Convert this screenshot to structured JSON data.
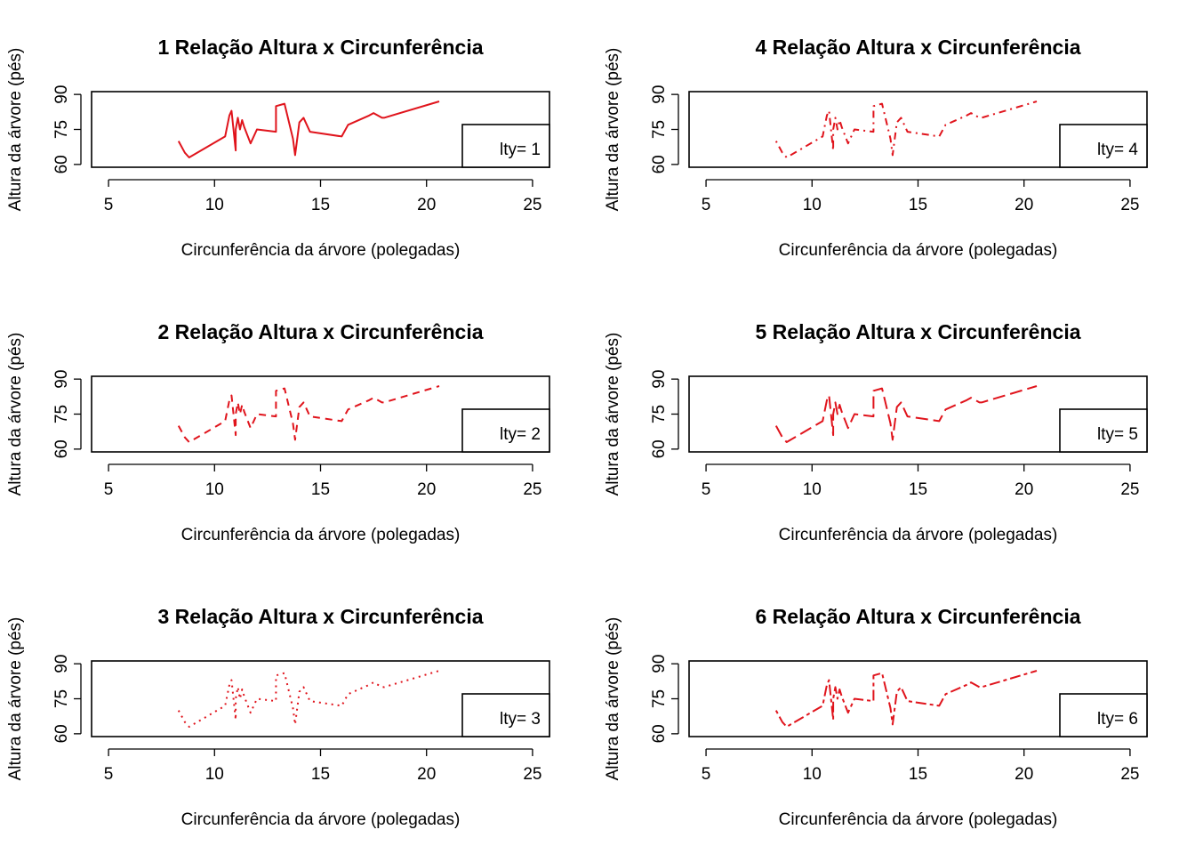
{
  "colors": {
    "line": "#e0141c",
    "axis": "#000000"
  },
  "chart_data": [
    {
      "type": "line",
      "title": "1 Relação Altura x Circunferência",
      "xlabel": "Circunferência da árvore (polegadas)",
      "ylabel": "Altura da árvore (pés)",
      "xlim": [
        5,
        25
      ],
      "ylim": [
        60,
        90
      ],
      "xticks": [
        "5",
        "10",
        "15",
        "20",
        "25"
      ],
      "yticks": [
        "60",
        "75",
        "90"
      ],
      "legend": "lty= 1",
      "line_style": "solid",
      "series": [
        {
          "x": [
            8.3,
            8.6,
            8.8,
            10.5,
            10.7,
            10.8,
            11.0,
            11.0,
            11.1,
            11.2,
            11.3,
            11.4,
            11.4,
            11.7,
            12.0,
            12.9,
            12.9,
            13.3,
            13.7,
            13.8,
            14.0,
            14.2,
            14.5,
            16.0,
            16.3,
            17.3,
            17.5,
            17.9,
            18.0,
            18.0,
            20.6
          ],
          "y": [
            70,
            65,
            63,
            72,
            81,
            83,
            66,
            75,
            80,
            75,
            79,
            76,
            76,
            69,
            75,
            74,
            85,
            86,
            71,
            64,
            78,
            80,
            74,
            72,
            77,
            81,
            82,
            80,
            80,
            80,
            87
          ]
        }
      ]
    },
    {
      "type": "line",
      "title": "2 Relação Altura x Circunferência",
      "xlabel": "Circunferência da árvore (polegadas)",
      "ylabel": "Altura da árvore (pés)",
      "xlim": [
        5,
        25
      ],
      "ylim": [
        60,
        90
      ],
      "xticks": [
        "5",
        "10",
        "15",
        "20",
        "25"
      ],
      "yticks": [
        "60",
        "75",
        "90"
      ],
      "legend": "lty= 2",
      "line_style": "dashed",
      "series": [
        {
          "x": [
            8.3,
            8.6,
            8.8,
            10.5,
            10.7,
            10.8,
            11.0,
            11.0,
            11.1,
            11.2,
            11.3,
            11.4,
            11.4,
            11.7,
            12.0,
            12.9,
            12.9,
            13.3,
            13.7,
            13.8,
            14.0,
            14.2,
            14.5,
            16.0,
            16.3,
            17.3,
            17.5,
            17.9,
            18.0,
            18.0,
            20.6
          ],
          "y": [
            70,
            65,
            63,
            72,
            81,
            83,
            66,
            75,
            80,
            75,
            79,
            76,
            76,
            69,
            75,
            74,
            85,
            86,
            71,
            64,
            78,
            80,
            74,
            72,
            77,
            81,
            82,
            80,
            80,
            80,
            87
          ]
        }
      ]
    },
    {
      "type": "line",
      "title": "3 Relação Altura x Circunferência",
      "xlabel": "Circunferência da árvore (polegadas)",
      "ylabel": "Altura da árvore (pés)",
      "xlim": [
        5,
        25
      ],
      "ylim": [
        60,
        90
      ],
      "xticks": [
        "5",
        "10",
        "15",
        "20",
        "25"
      ],
      "yticks": [
        "60",
        "75",
        "90"
      ],
      "legend": "lty= 3",
      "line_style": "dotted",
      "series": [
        {
          "x": [
            8.3,
            8.6,
            8.8,
            10.5,
            10.7,
            10.8,
            11.0,
            11.0,
            11.1,
            11.2,
            11.3,
            11.4,
            11.4,
            11.7,
            12.0,
            12.9,
            12.9,
            13.3,
            13.7,
            13.8,
            14.0,
            14.2,
            14.5,
            16.0,
            16.3,
            17.3,
            17.5,
            17.9,
            18.0,
            18.0,
            20.6
          ],
          "y": [
            70,
            65,
            63,
            72,
            81,
            83,
            66,
            75,
            80,
            75,
            79,
            76,
            76,
            69,
            75,
            74,
            85,
            86,
            71,
            64,
            78,
            80,
            74,
            72,
            77,
            81,
            82,
            80,
            80,
            80,
            87
          ]
        }
      ]
    },
    {
      "type": "line",
      "title": "4 Relação Altura x Circunferência",
      "xlabel": "Circunferência da árvore (polegadas)",
      "ylabel": "Altura da árvore (pés)",
      "xlim": [
        5,
        25
      ],
      "ylim": [
        60,
        90
      ],
      "xticks": [
        "5",
        "10",
        "15",
        "20",
        "25"
      ],
      "yticks": [
        "60",
        "75",
        "90"
      ],
      "legend": "lty= 4",
      "line_style": "dotdash",
      "series": [
        {
          "x": [
            8.3,
            8.6,
            8.8,
            10.5,
            10.7,
            10.8,
            11.0,
            11.0,
            11.1,
            11.2,
            11.3,
            11.4,
            11.4,
            11.7,
            12.0,
            12.9,
            12.9,
            13.3,
            13.7,
            13.8,
            14.0,
            14.2,
            14.5,
            16.0,
            16.3,
            17.3,
            17.5,
            17.9,
            18.0,
            18.0,
            20.6
          ],
          "y": [
            70,
            65,
            63,
            72,
            81,
            83,
            66,
            75,
            80,
            75,
            79,
            76,
            76,
            69,
            75,
            74,
            85,
            86,
            71,
            64,
            78,
            80,
            74,
            72,
            77,
            81,
            82,
            80,
            80,
            80,
            87
          ]
        }
      ]
    },
    {
      "type": "line",
      "title": "5 Relação Altura x Circunferência",
      "xlabel": "Circunferência da árvore (polegadas)",
      "ylabel": "Altura da árvore (pés)",
      "xlim": [
        5,
        25
      ],
      "ylim": [
        60,
        90
      ],
      "xticks": [
        "5",
        "10",
        "15",
        "20",
        "25"
      ],
      "yticks": [
        "60",
        "75",
        "90"
      ],
      "legend": "lty= 5",
      "line_style": "longdash",
      "series": [
        {
          "x": [
            8.3,
            8.6,
            8.8,
            10.5,
            10.7,
            10.8,
            11.0,
            11.0,
            11.1,
            11.2,
            11.3,
            11.4,
            11.4,
            11.7,
            12.0,
            12.9,
            12.9,
            13.3,
            13.7,
            13.8,
            14.0,
            14.2,
            14.5,
            16.0,
            16.3,
            17.3,
            17.5,
            17.9,
            18.0,
            18.0,
            20.6
          ],
          "y": [
            70,
            65,
            63,
            72,
            81,
            83,
            66,
            75,
            80,
            75,
            79,
            76,
            76,
            69,
            75,
            74,
            85,
            86,
            71,
            64,
            78,
            80,
            74,
            72,
            77,
            81,
            82,
            80,
            80,
            80,
            87
          ]
        }
      ]
    },
    {
      "type": "line",
      "title": "6 Relação Altura x Circunferência",
      "xlabel": "Circunferência da árvore (polegadas)",
      "ylabel": "Altura da árvore (pés)",
      "xlim": [
        5,
        25
      ],
      "ylim": [
        60,
        90
      ],
      "xticks": [
        "5",
        "10",
        "15",
        "20",
        "25"
      ],
      "yticks": [
        "60",
        "75",
        "90"
      ],
      "legend": "lty= 6",
      "line_style": "twodash",
      "series": [
        {
          "x": [
            8.3,
            8.6,
            8.8,
            10.5,
            10.7,
            10.8,
            11.0,
            11.0,
            11.1,
            11.2,
            11.3,
            11.4,
            11.4,
            11.7,
            12.0,
            12.9,
            12.9,
            13.3,
            13.7,
            13.8,
            14.0,
            14.2,
            14.5,
            16.0,
            16.3,
            17.3,
            17.5,
            17.9,
            18.0,
            18.0,
            20.6
          ],
          "y": [
            70,
            65,
            63,
            72,
            81,
            83,
            66,
            75,
            80,
            75,
            79,
            76,
            76,
            69,
            75,
            74,
            85,
            86,
            71,
            64,
            78,
            80,
            74,
            72,
            77,
            81,
            82,
            80,
            80,
            80,
            87
          ]
        }
      ]
    }
  ]
}
